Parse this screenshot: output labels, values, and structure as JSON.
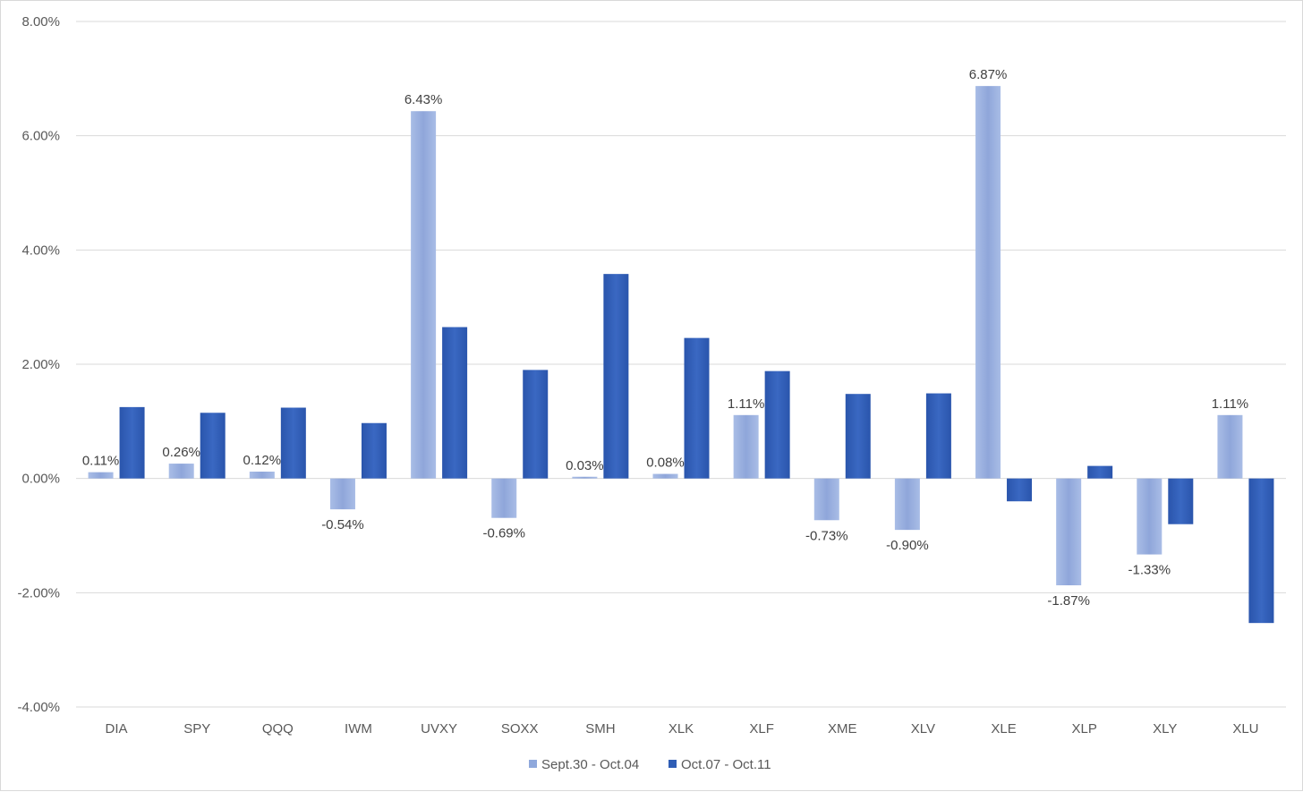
{
  "chart_data": {
    "type": "bar",
    "categories": [
      "DIA",
      "SPY",
      "QQQ",
      "IWM",
      "UVXY",
      "SOXX",
      "SMH",
      "XLK",
      "XLF",
      "XME",
      "XLV",
      "XLE",
      "XLP",
      "XLY",
      "XLU"
    ],
    "series": [
      {
        "name": "Sept.30 - Oct.04",
        "color": "#8FA8DC",
        "values": [
          0.11,
          0.26,
          0.12,
          -0.54,
          6.43,
          -0.69,
          0.03,
          0.08,
          1.11,
          -0.73,
          -0.9,
          6.87,
          -1.87,
          -1.33,
          1.11
        ],
        "labels": [
          "0.11%",
          "0.26%",
          "0.12%",
          "-0.54%",
          "6.43%",
          "-0.69%",
          "0.03%",
          "0.08%",
          "1.11%",
          "-0.73%",
          "-0.90%",
          "6.87%",
          "-1.87%",
          "-1.33%",
          "1.11%"
        ]
      },
      {
        "name": "Oct.07 - Oct.11",
        "color": "#2F5DB5",
        "values": [
          1.25,
          1.15,
          1.24,
          0.97,
          2.65,
          1.9,
          3.58,
          2.46,
          1.88,
          1.48,
          1.49,
          -0.4,
          0.22,
          -0.8,
          -2.53
        ]
      }
    ],
    "yticks": [
      "8.00%",
      "6.00%",
      "4.00%",
      "2.00%",
      "0.00%",
      "-2.00%",
      "-4.00%"
    ],
    "ytick_values": [
      8,
      6,
      4,
      2,
      0,
      -2,
      -4
    ],
    "ylim": [
      -4,
      8
    ],
    "grid": true,
    "legend_position": "bottom"
  }
}
